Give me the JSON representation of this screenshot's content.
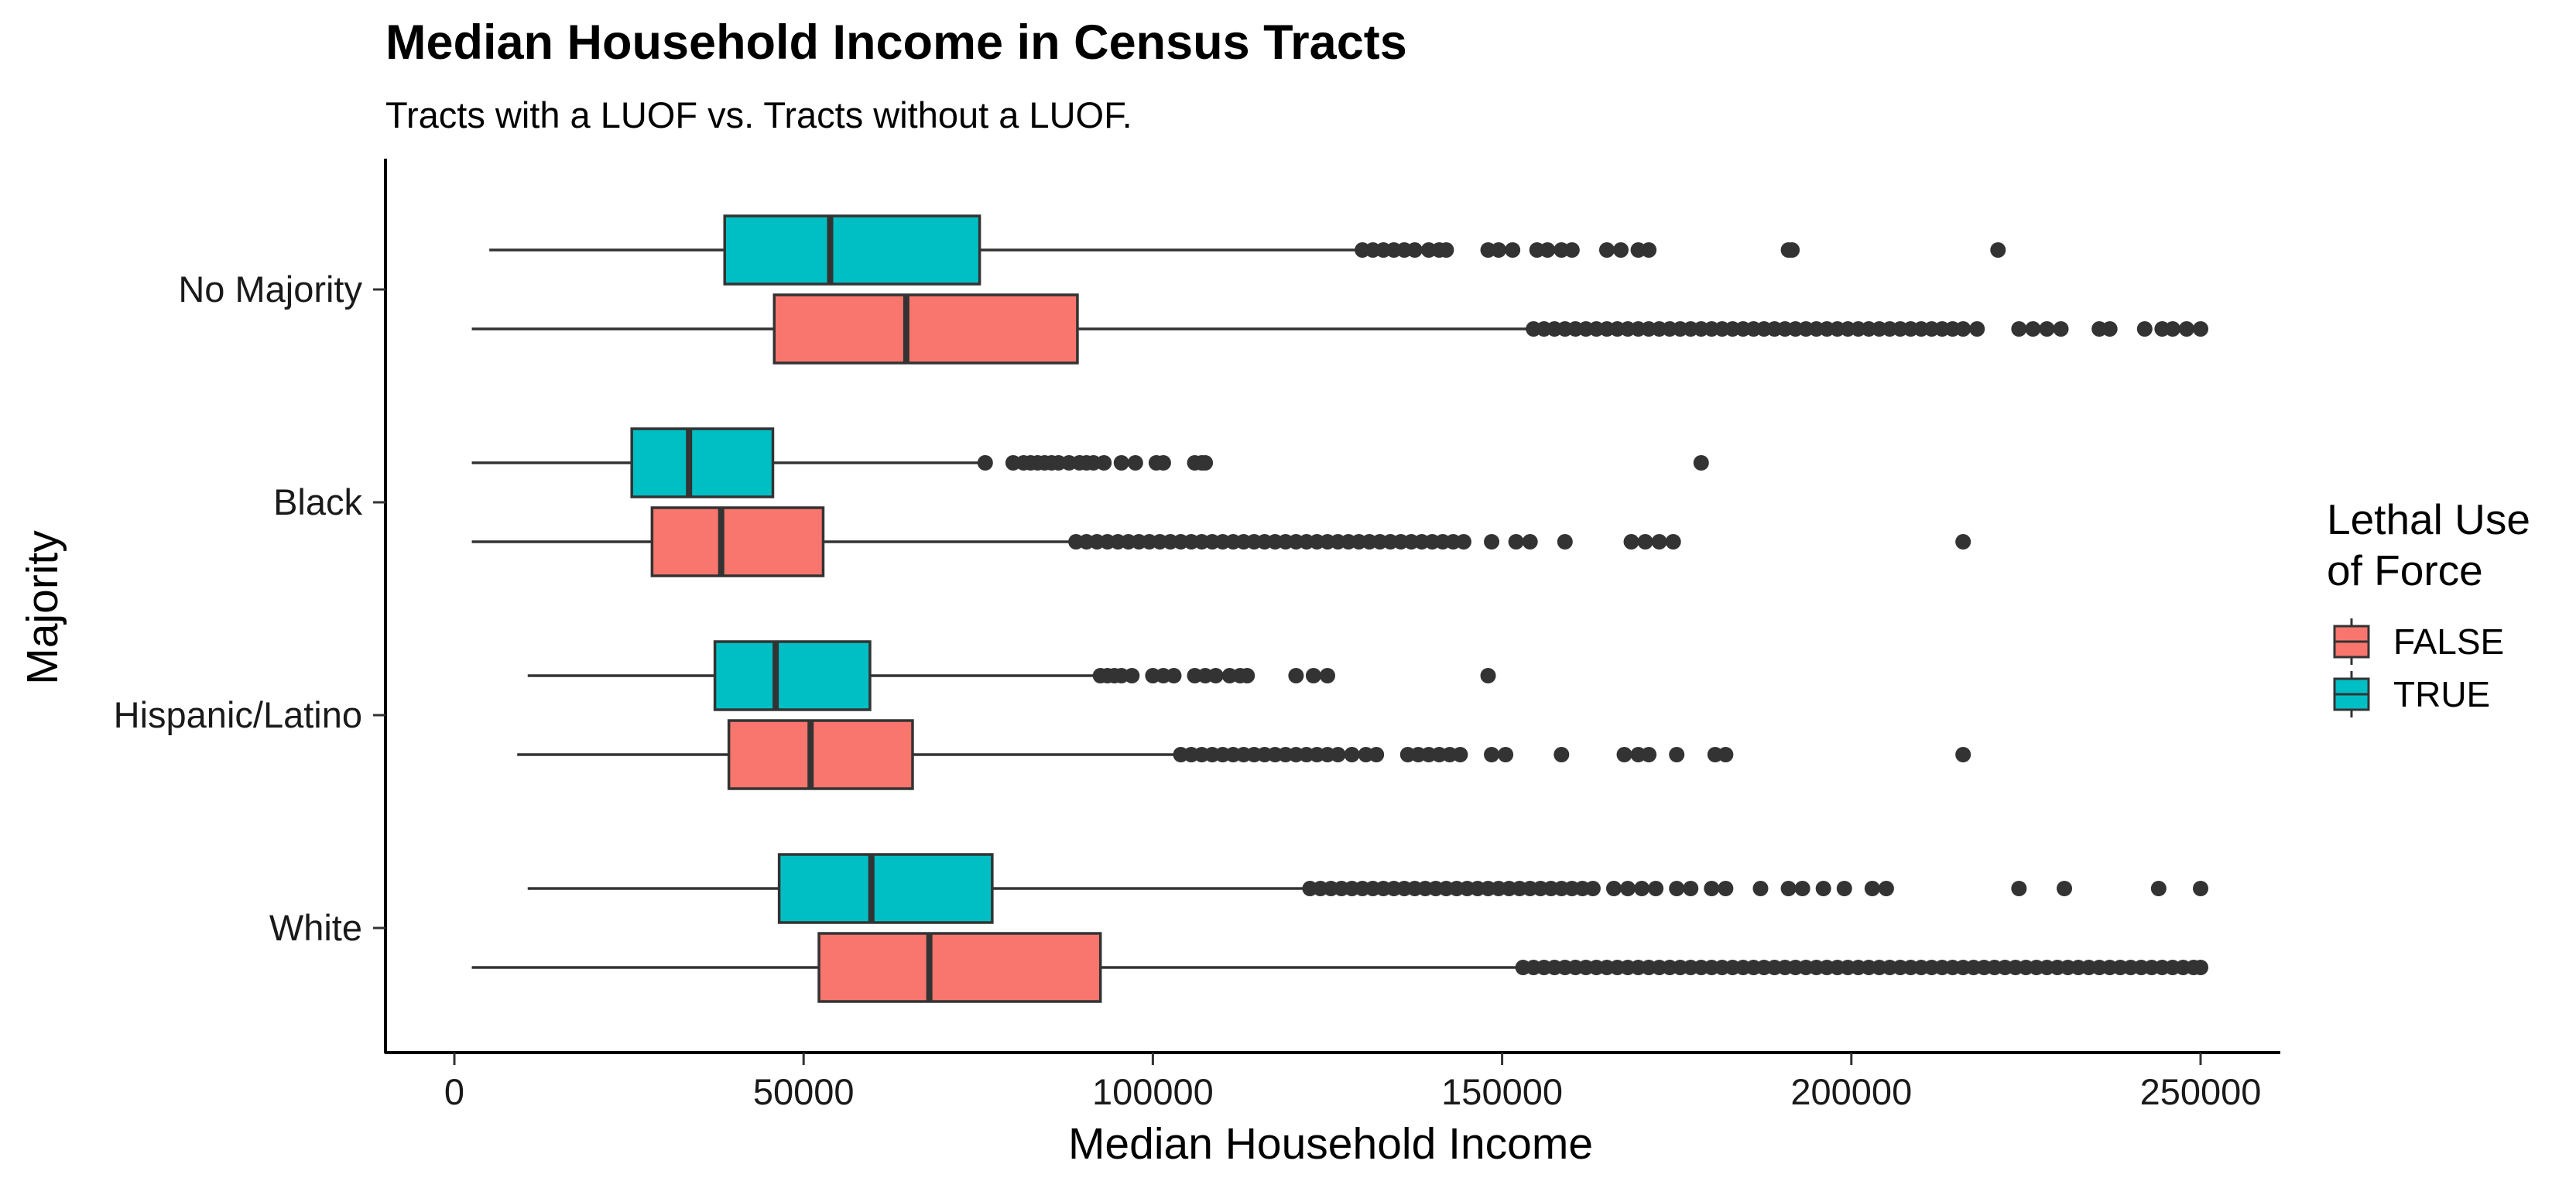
{
  "chart_data": {
    "type": "boxplot",
    "orientation": "horizontal",
    "title": "Median Household Income in Census Tracts",
    "subtitle": "Tracts with a LUOF vs. Tracts without a LUOF.",
    "xlabel": "Median Household Income",
    "ylabel": "Majority",
    "xlim": [
      -9000,
      262000
    ],
    "xticks": [
      0,
      50000,
      100000,
      150000,
      200000,
      250000
    ],
    "xtick_labels": [
      "0",
      "50000",
      "100000",
      "150000",
      "200000",
      "250000"
    ],
    "categories": [
      "No Majority",
      "Black",
      "Hispanic/Latino",
      "White"
    ],
    "grid": false,
    "legend": {
      "title_lines": [
        "Lethal Use",
        "of Force"
      ],
      "placement": "right",
      "entries": [
        {
          "label": "FALSE",
          "color": "#F8766D"
        },
        {
          "label": "TRUE",
          "color": "#00BFC4"
        }
      ]
    },
    "colors": {
      "FALSE": "#F8766D",
      "TRUE": "#00BFC4",
      "outline": "#333333",
      "outlier": "#333333"
    },
    "series": [
      {
        "name": "TRUE",
        "boxes": [
          {
            "category": "No Majority",
            "whisker_low": 5000,
            "q1": 38700,
            "median": 53800,
            "q3": 75200,
            "whisker_high": 129500,
            "outliers": [
              130000,
              131500,
              133000,
              134500,
              136000,
              137500,
              139500,
              141000,
              142000,
              148000,
              149500,
              151500,
              155000,
              156500,
              158500,
              160000,
              165000,
              167000,
              169500,
              171000,
              191000,
              191500,
              221000
            ]
          },
          {
            "category": "Black",
            "whisker_low": 2500,
            "q1": 25400,
            "median": 33600,
            "q3": 45600,
            "whisker_high": 75000,
            "outliers": [
              76000,
              80000,
              81500,
              82500,
              83500,
              84500,
              85500,
              86500,
              88000,
              89500,
              90500,
              91500,
              93000,
              95500,
              97500,
              100500,
              101500,
              106000,
              107000,
              107500,
              178500
            ]
          },
          {
            "category": "Hispanic/Latino",
            "whisker_low": 10500,
            "q1": 37300,
            "median": 46000,
            "q3": 59500,
            "whisker_high": 92000,
            "outliers": [
              92500,
              93500,
              94500,
              95500,
              97000,
              100000,
              101500,
              103000,
              106000,
              107500,
              109000,
              111000,
              112500,
              113500,
              120500,
              123000,
              125000,
              148000
            ]
          },
          {
            "category": "White",
            "whisker_low": 10500,
            "q1": 46500,
            "median": 59700,
            "q3": 77000,
            "whisker_high": 122000,
            "outliers": [
              122500,
              124000,
              125500,
              127000,
              128500,
              130000,
              131500,
              133000,
              134500,
              136000,
              137500,
              139000,
              140500,
              142000,
              143500,
              145000,
              146500,
              148000,
              149500,
              151000,
              152500,
              154000,
              155500,
              157000,
              158500,
              160000,
              161500,
              163000,
              166000,
              168000,
              170000,
              172000,
              175000,
              177000,
              180000,
              182000,
              187000,
              191000,
              193000,
              196000,
              199000,
              203000,
              205000,
              224000,
              230500,
              244000,
              250000
            ]
          }
        ]
      },
      {
        "name": "FALSE",
        "boxes": [
          {
            "category": "No Majority",
            "whisker_low": 2500,
            "q1": 45800,
            "median": 64700,
            "q3": 89200,
            "whisker_high": 154000,
            "outliers": [
              154500,
              156000,
              157500,
              159000,
              160500,
              162000,
              163500,
              165000,
              166500,
              168000,
              169500,
              171000,
              172500,
              174000,
              175500,
              177000,
              178500,
              180000,
              181500,
              183000,
              184500,
              186000,
              187500,
              189000,
              190500,
              192000,
              193500,
              195000,
              196500,
              198000,
              199500,
              201000,
              202500,
              204000,
              205500,
              207000,
              208500,
              210000,
              211500,
              213000,
              214500,
              216000,
              218000,
              224000,
              226000,
              228000,
              230000,
              235500,
              237000,
              242000,
              244500,
              246000,
              248000,
              250000
            ]
          },
          {
            "category": "Black",
            "whisker_low": 2500,
            "q1": 28300,
            "median": 38200,
            "q3": 52800,
            "whisker_high": 88500,
            "outliers": [
              89000,
              90500,
              92000,
              93500,
              95000,
              96500,
              98000,
              99500,
              101000,
              102500,
              104000,
              105500,
              107000,
              108500,
              110000,
              111500,
              113000,
              114500,
              116000,
              117500,
              119000,
              120500,
              122000,
              123500,
              125000,
              126500,
              128000,
              129500,
              131000,
              132500,
              134000,
              135500,
              137000,
              138500,
              140000,
              141500,
              143000,
              144500,
              148500,
              152000,
              154000,
              159000,
              168500,
              170500,
              172500,
              174500,
              216000
            ]
          },
          {
            "category": "Hispanic/Latino",
            "whisker_low": 9000,
            "q1": 39300,
            "median": 51000,
            "q3": 65600,
            "whisker_high": 103500,
            "outliers": [
              104000,
              105500,
              107000,
              108500,
              110000,
              111500,
              113000,
              114500,
              116000,
              117500,
              119000,
              120500,
              122000,
              123500,
              125000,
              126500,
              128500,
              130500,
              132000,
              136500,
              138000,
              139500,
              141000,
              142500,
              144000,
              148500,
              150500,
              158500,
              167500,
              169500,
              171000,
              175000,
              180500,
              182000,
              216000
            ]
          },
          {
            "category": "White",
            "whisker_low": 2500,
            "q1": 52200,
            "median": 68000,
            "q3": 92500,
            "whisker_high": 152500,
            "outliers": [
              153000,
              154500,
              156000,
              157500,
              159000,
              160500,
              162000,
              163500,
              165000,
              166500,
              168000,
              169500,
              171000,
              172500,
              174000,
              175500,
              177000,
              178500,
              180000,
              181500,
              183000,
              184500,
              186000,
              187500,
              189000,
              190500,
              192000,
              193500,
              195000,
              196500,
              198000,
              199500,
              201000,
              202500,
              204000,
              205500,
              207000,
              208500,
              210000,
              211500,
              213000,
              214500,
              216000,
              217500,
              219000,
              220500,
              222000,
              223500,
              225000,
              226500,
              228000,
              229500,
              231000,
              232500,
              234000,
              235500,
              237000,
              238500,
              240000,
              241500,
              243000,
              244500,
              246000,
              247500,
              249000,
              250000
            ]
          }
        ]
      }
    ]
  }
}
